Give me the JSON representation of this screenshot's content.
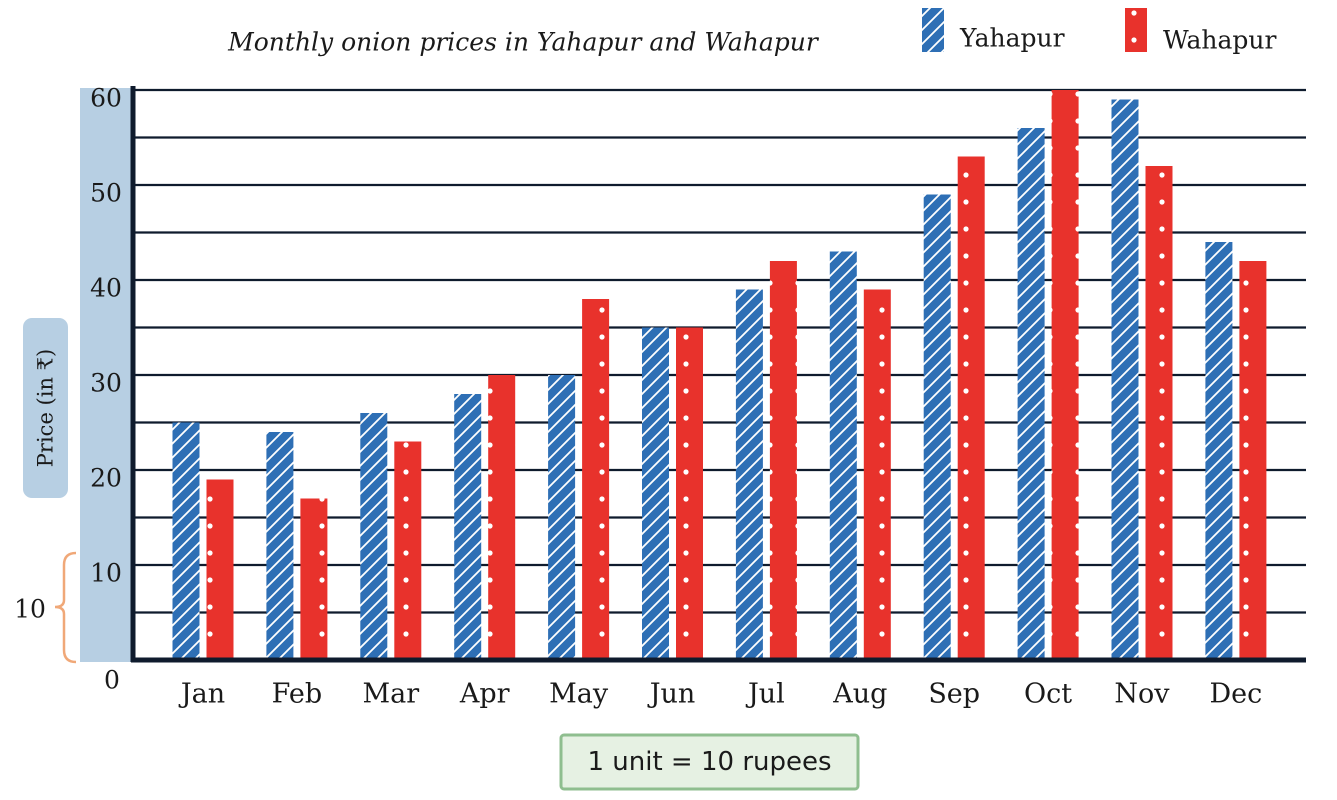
{
  "chart_data": {
    "type": "bar",
    "title": "Monthly onion prices in Yahapur and Wahapur",
    "ylabel": "Price (in ₹)",
    "xlabel": "",
    "ylim": [
      0,
      60
    ],
    "y_ticks": [
      "0",
      "10",
      "20",
      "30",
      "40",
      "50",
      "60"
    ],
    "bracket_label": "10",
    "scale_note": "1 unit = 10 rupees",
    "grid": true,
    "legend_position": "top-right",
    "categories": [
      "Jan",
      "Feb",
      "Mar",
      "Apr",
      "May",
      "Jun",
      "Jul",
      "Aug",
      "Sep",
      "Oct",
      "Nov",
      "Dec"
    ],
    "series": [
      {
        "name": "Yahapur",
        "color": "#2e6fb5",
        "pattern": "diagonal-stripes",
        "values": [
          25,
          24,
          26,
          28,
          30,
          35,
          39,
          43,
          49,
          56,
          59,
          44
        ]
      },
      {
        "name": "Wahapur",
        "color": "#e8322c",
        "pattern": "dots",
        "values": [
          19,
          17,
          23,
          30,
          38,
          35,
          42,
          39,
          53,
          60,
          52,
          42
        ]
      }
    ],
    "colors": {
      "axis": "#0f1b2d",
      "ylabel_bg": "#b7cfe3",
      "bracket": "#f0a878",
      "note_border": "#8fbe8f",
      "note_bg": "#e6f1e3"
    }
  }
}
